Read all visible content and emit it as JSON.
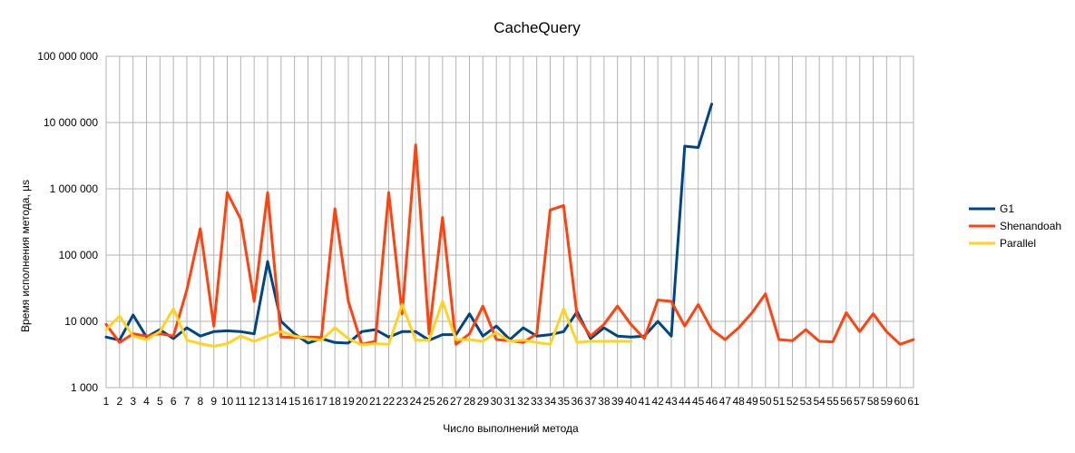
{
  "chart_data": {
    "type": "line",
    "title": "CacheQuery",
    "xlabel": "Число выполнений метода",
    "ylabel": "Время исполнения метода, µs",
    "y_scale": "log",
    "ylim": [
      1000,
      100000000
    ],
    "y_ticks": [
      {
        "value": 1000,
        "label": "1 000"
      },
      {
        "value": 10000,
        "label": "10 000"
      },
      {
        "value": 100000,
        "label": "100 000"
      },
      {
        "value": 1000000,
        "label": "1 000 000"
      },
      {
        "value": 10000000,
        "label": "10 000 000"
      },
      {
        "value": 100000000,
        "label": "100 000 000"
      }
    ],
    "categories": [
      "1",
      "2",
      "3",
      "4",
      "5",
      "6",
      "7",
      "8",
      "9",
      "10",
      "11",
      "12",
      "13",
      "14",
      "15",
      "16",
      "17",
      "18",
      "19",
      "20",
      "21",
      "22",
      "23",
      "24",
      "25",
      "26",
      "27",
      "28",
      "29",
      "30",
      "31",
      "32",
      "33",
      "34",
      "35",
      "36",
      "37",
      "38",
      "39",
      "40",
      "41",
      "42",
      "43",
      "44",
      "45",
      "46",
      "47",
      "48",
      "49",
      "50",
      "51",
      "52",
      "53",
      "54",
      "55",
      "56",
      "57",
      "58",
      "59",
      "60",
      "61"
    ],
    "grid": true,
    "legend_position": "right",
    "series": [
      {
        "name": "G1",
        "color": "#004586",
        "values": [
          5800,
          5200,
          12500,
          5800,
          7500,
          5500,
          8000,
          6000,
          7000,
          7200,
          7000,
          6500,
          80000,
          10000,
          6500,
          4700,
          5500,
          4800,
          4700,
          7000,
          7500,
          5800,
          7000,
          7000,
          5200,
          6300,
          6300,
          13000,
          6000,
          8500,
          5300,
          8000,
          6000,
          6300,
          7000,
          14000,
          5500,
          8000,
          6000,
          5800,
          6000,
          10000,
          6000,
          4400000,
          4200000,
          19000000,
          null,
          null,
          null,
          null,
          null,
          null,
          null,
          null,
          null,
          null,
          null,
          null,
          null,
          null,
          null
        ]
      },
      {
        "name": "Shenandoah",
        "color": "#ff420e",
        "values": [
          9000,
          4800,
          6500,
          6000,
          6500,
          6000,
          30000,
          250000,
          8500,
          880000,
          350000,
          20000,
          880000,
          5800,
          5700,
          5800,
          5700,
          500000,
          20000,
          4500,
          5000,
          880000,
          13000,
          4600000,
          6500,
          370000,
          4500,
          6500,
          17000,
          5300,
          5100,
          4800,
          6500,
          480000,
          560000,
          12000,
          6000,
          9000,
          17000,
          9000,
          5500,
          21000,
          20000,
          8500,
          18000,
          7500,
          5300,
          8000,
          13500,
          26000,
          5300,
          5100,
          7500,
          5000,
          4900,
          13500,
          7000,
          13000,
          7000,
          4500,
          5300
        ]
      },
      {
        "name": "Parallel",
        "color": "#ffd320",
        "values": [
          7500,
          12000,
          6000,
          5300,
          7000,
          15500,
          5200,
          4600,
          4200,
          4600,
          6000,
          5000,
          6000,
          7000,
          6000,
          5500,
          5200,
          8000,
          5500,
          4400,
          4600,
          4500,
          18000,
          5200,
          5200,
          20000,
          5300,
          5300,
          5000,
          6800,
          5000,
          5200,
          4800,
          4500,
          15500,
          4800,
          5000,
          5000,
          5000,
          5000,
          null,
          null,
          null,
          null,
          null,
          null,
          null,
          null,
          null,
          null,
          null,
          null,
          null,
          null,
          null,
          null,
          null,
          null,
          null,
          null,
          null
        ]
      }
    ]
  }
}
